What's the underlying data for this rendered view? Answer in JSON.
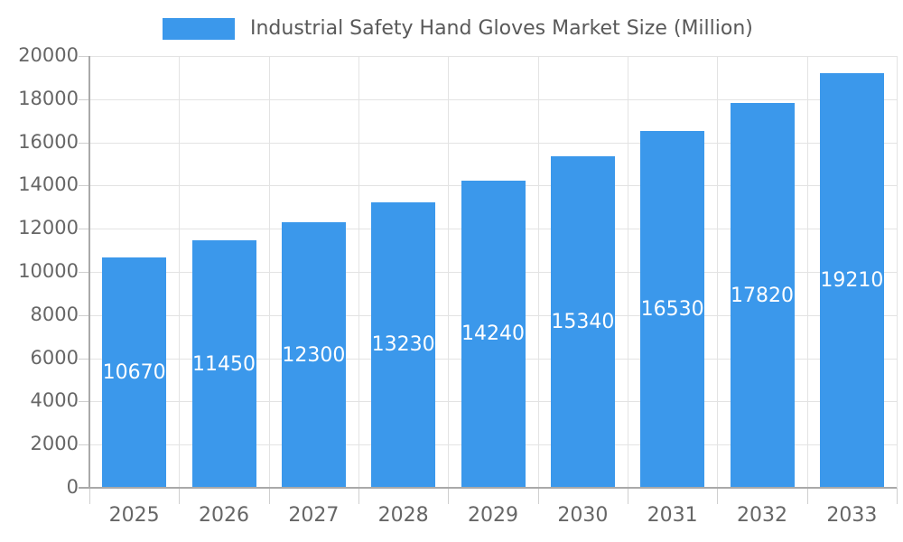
{
  "chart_data": {
    "type": "bar",
    "title": "Industrial Safety Hand Gloves Market Size (Million)",
    "xlabel": "",
    "ylabel": "",
    "categories": [
      "2025",
      "2026",
      "2027",
      "2028",
      "2029",
      "2030",
      "2031",
      "2032",
      "2033"
    ],
    "series": [
      {
        "name": "Industrial Safety Hand Gloves Market Size (Million)",
        "values": [
          10670,
          11450,
          12300,
          13230,
          14240,
          15340,
          16530,
          17820,
          19210
        ]
      }
    ],
    "ylim": [
      0,
      20000
    ],
    "yticks": [
      0,
      2000,
      4000,
      6000,
      8000,
      10000,
      12000,
      14000,
      16000,
      18000,
      20000
    ],
    "grid": true,
    "legend_position": "top",
    "bar_labels_visible": true,
    "colors": {
      "bar": "#3b98eb",
      "bar_label": "#ffffff",
      "grid": "#e3e3e3",
      "axis": "#a9a9a9",
      "tick": "#cfcfcf",
      "tick_label": "#666666",
      "title": "#595959",
      "background": "#ffffff"
    }
  }
}
